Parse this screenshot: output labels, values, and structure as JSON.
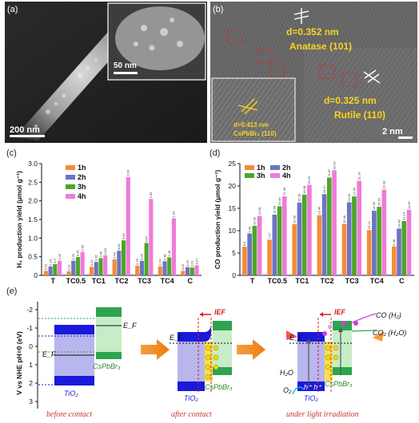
{
  "panel_labels": {
    "a": "(a)",
    "b": "(b)",
    "c": "(c)",
    "d": "(d)",
    "e": "(e)"
  },
  "panel_a": {
    "scale_main": "200 nm",
    "scale_inset": "50 nm"
  },
  "panel_b": {
    "anatase_d": "d=0.352 nm",
    "anatase_name": "Anatase (101)",
    "rutile_d": "d=0.325 nm",
    "rutile_name": "Rutile (110)",
    "inset_d": "d=0.413 nm",
    "inset_name": "CsPbBr₃ (110)",
    "scale": "2 nm"
  },
  "colors": {
    "1h": "#f28c3b",
    "2h": "#6d73c4",
    "3h": "#4ba626",
    "4h": "#f07ad8"
  },
  "chart_data": [
    {
      "type": "bar",
      "panel": "c",
      "ylabel": "H₂ production yield (μmol g⁻¹)",
      "ylim": [
        0,
        3.0
      ],
      "yticks": [
        "0",
        "0.5",
        "1.0",
        "1.5",
        "2.0",
        "2.5",
        "3.0"
      ],
      "categories": [
        "T",
        "TC0.5",
        "TC1",
        "TC2",
        "TC3",
        "TC4",
        "C"
      ],
      "series": [
        {
          "name": "1h",
          "values": [
            0.12,
            0.11,
            0.23,
            0.43,
            0.26,
            0.24,
            0.12
          ]
        },
        {
          "name": "2h",
          "values": [
            0.24,
            0.39,
            0.36,
            0.66,
            0.39,
            0.38,
            0.22
          ]
        },
        {
          "name": "3h",
          "values": [
            0.3,
            0.49,
            0.46,
            0.94,
            0.87,
            0.48,
            0.21
          ]
        },
        {
          "name": "4h",
          "values": [
            0.39,
            0.63,
            0.54,
            2.64,
            2.05,
            1.53,
            0.27
          ]
        }
      ],
      "legend": "top-left"
    },
    {
      "type": "bar",
      "panel": "d",
      "ylabel": "CO production yield (μmol g⁻¹)",
      "ylim": [
        0,
        25
      ],
      "yticks": [
        "0",
        "5",
        "10",
        "15",
        "20",
        "25"
      ],
      "categories": [
        "T",
        "TC0.5",
        "TC1",
        "TC2",
        "TC3",
        "TC4",
        "C"
      ],
      "series": [
        {
          "name": "1h",
          "values": [
            6.4,
            7.97,
            11.48,
            13.46,
            11.48,
            10.13,
            6.48
          ]
        },
        {
          "name": "2h",
          "values": [
            9.36,
            13.58,
            16.28,
            18.17,
            16.35,
            14.45,
            10.48
          ]
        },
        {
          "name": "3h",
          "values": [
            11.09,
            15.46,
            18.08,
            21.87,
            17.66,
            15.33,
            12.14
          ]
        },
        {
          "name": "4h",
          "values": [
            13.28,
            17.69,
            20.25,
            23.52,
            21.14,
            19.18,
            14.67
          ]
        }
      ],
      "legend": "top-left"
    }
  ],
  "panel_e": {
    "y_axis_label": "V vs NHE pH=0 (eV)",
    "y_ticks": [
      "-2",
      "-1",
      "0",
      "1",
      "2",
      "3"
    ],
    "tio2": "TiO₂",
    "cspbbr3": "CsPbBr₃",
    "ef": "E_F",
    "ief": "IEF",
    "caption_before": "before contact",
    "caption_after": "after contact",
    "caption_light": "under light irradiation",
    "product_co": "CO (H₂)",
    "reactant_co2": "CO₂ (H₂O)",
    "h2o": "H₂O",
    "o2": "O₂",
    "holes": "h⁺ h⁺",
    "e_minus": "e⁻"
  }
}
